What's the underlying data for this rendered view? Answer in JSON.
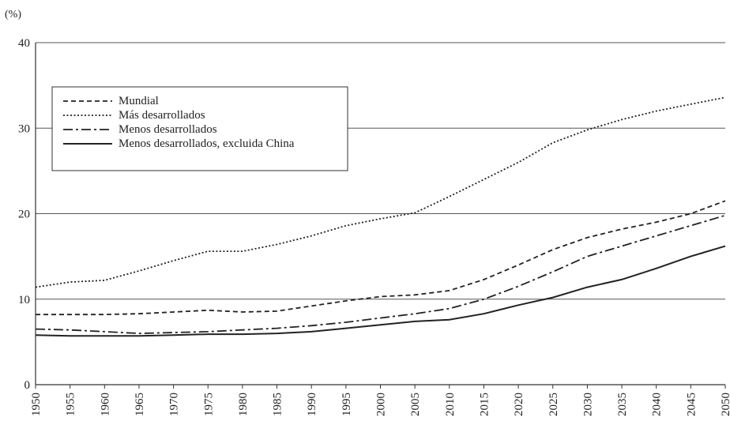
{
  "chart_data": {
    "type": "line",
    "title": "",
    "ylabel": "(%)",
    "xlabel": "",
    "ylim": [
      0,
      40
    ],
    "xlim": [
      1950,
      2050
    ],
    "yticks": [
      0,
      10,
      20,
      30,
      40
    ],
    "grid": "horizontal",
    "legend_position": "top-left",
    "x": [
      1950,
      1955,
      1960,
      1965,
      1970,
      1975,
      1980,
      1985,
      1990,
      1995,
      2000,
      2005,
      2010,
      2015,
      2020,
      2025,
      2030,
      2035,
      2040,
      2045,
      2050
    ],
    "series": [
      {
        "name": "Mundial",
        "style": "dashed",
        "values": [
          8.2,
          8.2,
          8.2,
          8.3,
          8.5,
          8.7,
          8.5,
          8.6,
          9.2,
          9.8,
          10.3,
          10.5,
          11.0,
          12.3,
          14.0,
          15.8,
          17.2,
          18.2,
          19.0,
          20.0,
          21.5
        ]
      },
      {
        "name": "Más desarrollados",
        "style": "dotted",
        "values": [
          11.4,
          12.0,
          12.2,
          13.3,
          14.5,
          15.6,
          15.6,
          16.4,
          17.4,
          18.6,
          19.4,
          20.1,
          22.0,
          24.0,
          26.0,
          28.3,
          29.8,
          31.0,
          32.0,
          32.8,
          33.6
        ]
      },
      {
        "name": "Menos desarrollados",
        "style": "dashdot",
        "values": [
          6.5,
          6.4,
          6.2,
          6.0,
          6.1,
          6.2,
          6.4,
          6.6,
          6.9,
          7.3,
          7.8,
          8.3,
          8.9,
          10.0,
          11.5,
          13.2,
          15.0,
          16.2,
          17.4,
          18.6,
          19.8
        ]
      },
      {
        "name": "Menos desarrollados, excluida China",
        "style": "solid",
        "values": [
          5.8,
          5.7,
          5.7,
          5.7,
          5.8,
          5.9,
          5.9,
          6.0,
          6.2,
          6.6,
          7.0,
          7.4,
          7.6,
          8.3,
          9.3,
          10.2,
          11.4,
          12.3,
          13.6,
          15.0,
          16.2
        ]
      }
    ]
  }
}
